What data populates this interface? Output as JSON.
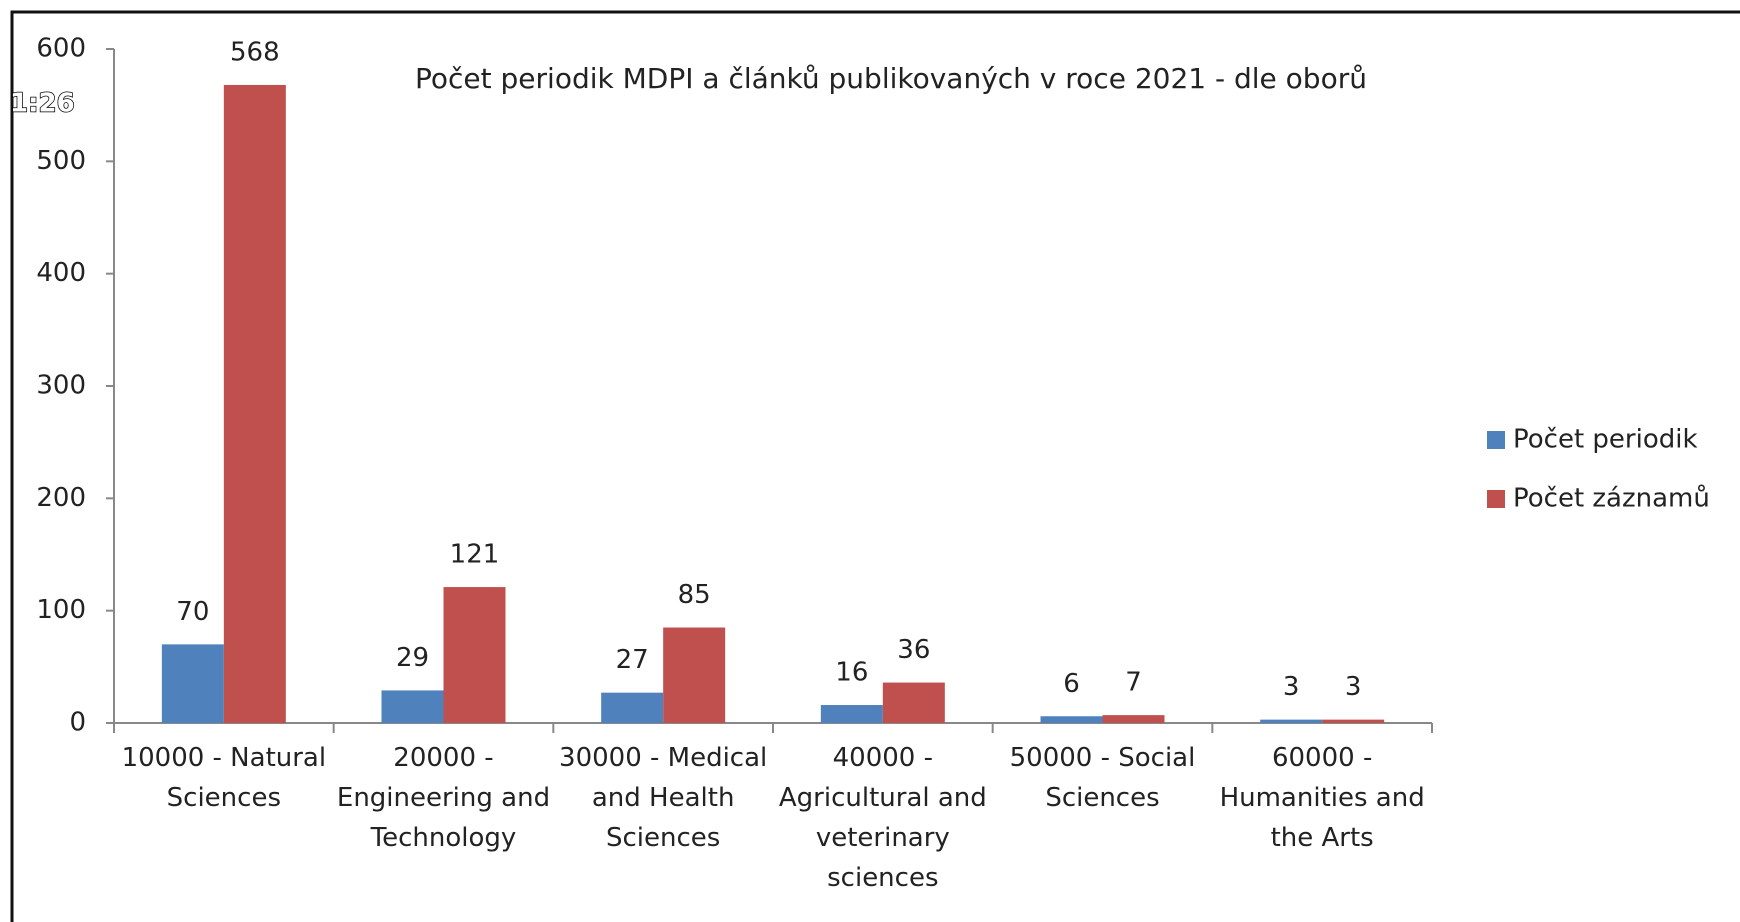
{
  "overlay_text": "1:26",
  "chart_data": {
    "type": "bar",
    "title": "Počet periodik MDPI a článků publikovaných v roce 2021 - dle oborů",
    "categories": [
      "10000 - Natural Sciences",
      "20000 - Engineering and Technology",
      "30000 - Medical and Health Sciences",
      "40000 - Agricultural and veterinary sciences",
      "50000 - Social Sciences",
      "60000 - Humanities and the Arts"
    ],
    "series": [
      {
        "name": "Počet periodik",
        "color": "#4f81bd",
        "values": [
          70,
          29,
          27,
          16,
          6,
          3
        ]
      },
      {
        "name": "Počet záznamů",
        "color": "#c0504d",
        "values": [
          568,
          121,
          85,
          36,
          7,
          3
        ]
      }
    ],
    "ylim": [
      0,
      600
    ],
    "yticks": [
      0,
      100,
      200,
      300,
      400,
      500,
      600
    ],
    "legend": "right"
  }
}
